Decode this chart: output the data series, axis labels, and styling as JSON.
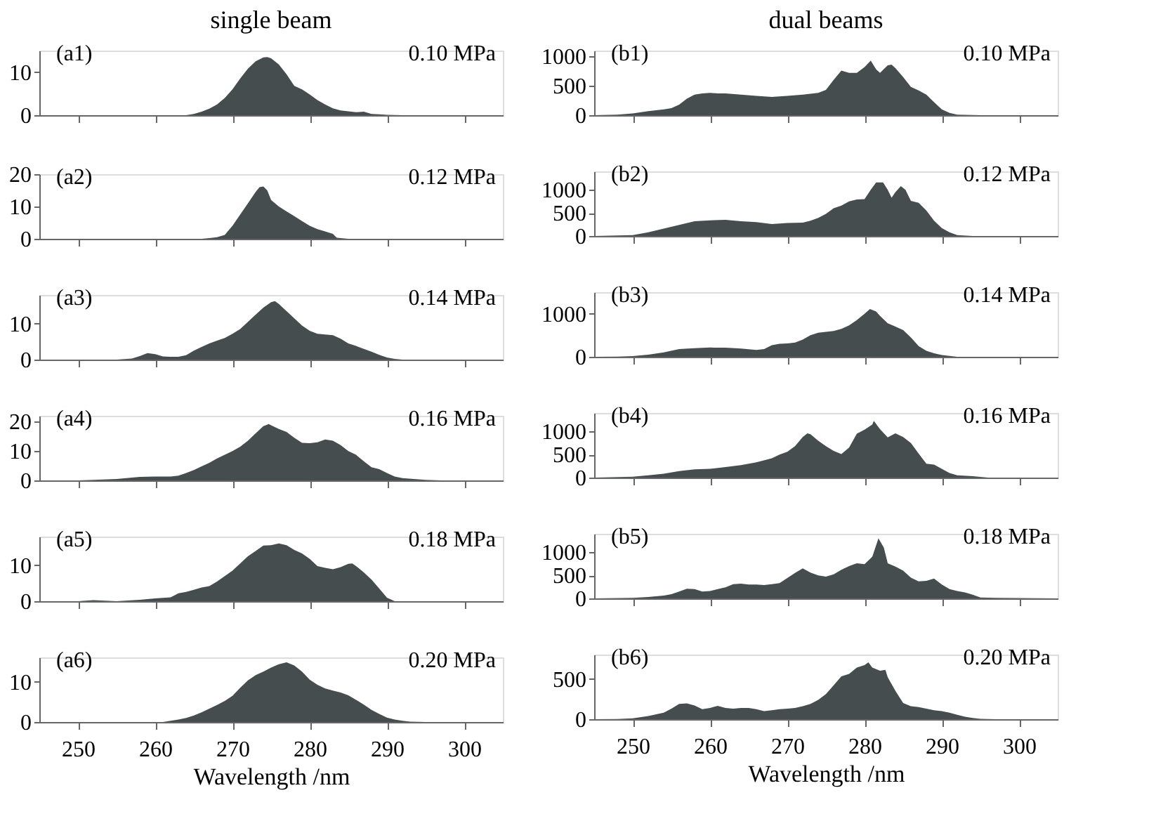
{
  "chart_data": [
    {
      "type": "area",
      "title": "single beam",
      "color": "#454d4f",
      "annotations": [
        "(a1)",
        "0.10 MPa"
      ],
      "xlim": [
        245,
        305
      ],
      "xticks": [
        250,
        260,
        270,
        280,
        290,
        300
      ],
      "ylim": [
        0,
        15
      ],
      "yticks": [
        0,
        10
      ],
      "tick_labels": "y",
      "grid": false,
      "x": [
        245,
        250,
        260,
        264,
        265,
        266,
        267,
        268,
        269,
        270,
        271,
        272,
        273,
        274,
        274.5,
        275,
        276,
        277,
        278,
        279,
        280,
        281,
        282,
        283,
        284,
        285,
        286,
        287,
        288,
        289,
        290,
        292,
        300,
        305
      ],
      "values": [
        0,
        0,
        0,
        0,
        0.3,
        0.8,
        1.5,
        2.5,
        4,
        6,
        8.5,
        10.8,
        12.5,
        13.4,
        13.5,
        13.2,
        11.8,
        9.5,
        6.8,
        6,
        4.8,
        3.5,
        2.5,
        1.6,
        1.1,
        0.9,
        0.7,
        0.8,
        0.3,
        0.2,
        0.1,
        0,
        0,
        0
      ]
    },
    {
      "type": "area",
      "color": "#454d4f",
      "annotations": [
        "(a2)",
        "0.12 MPa"
      ],
      "xlim": [
        245,
        305
      ],
      "xticks": [
        250,
        260,
        270,
        280,
        290,
        300
      ],
      "ylim": [
        0,
        20
      ],
      "yticks": [
        0,
        10,
        20
      ],
      "tick_labels": "y",
      "grid": false,
      "x": [
        245,
        260,
        266,
        267,
        268,
        269,
        270,
        271,
        272,
        273,
        273.5,
        274,
        274.5,
        275,
        276,
        277,
        278,
        279,
        280,
        281,
        282,
        283,
        283.5,
        285,
        305
      ],
      "values": [
        0,
        0,
        0,
        0.2,
        0.5,
        1.2,
        4,
        7.5,
        11,
        14.5,
        16,
        16.2,
        15,
        12,
        10,
        8.5,
        7,
        5.5,
        4,
        3,
        2.3,
        1.5,
        0.3,
        0,
        0
      ]
    },
    {
      "type": "area",
      "color": "#454d4f",
      "annotations": [
        "(a3)",
        "0.14 MPa"
      ],
      "xlim": [
        245,
        305
      ],
      "xticks": [
        250,
        260,
        270,
        280,
        290,
        300
      ],
      "ylim": [
        0,
        18
      ],
      "yticks": [
        0,
        10
      ],
      "tick_labels": "y",
      "grid": false,
      "x": [
        245,
        255,
        257,
        258,
        259,
        260,
        261,
        262,
        263,
        264,
        265,
        266,
        267,
        268,
        269,
        270,
        271,
        272,
        273,
        274,
        275,
        275.5,
        276,
        277,
        278,
        279,
        280,
        281,
        282,
        283,
        284,
        285,
        286,
        287,
        288,
        289,
        290,
        291,
        292,
        305
      ],
      "values": [
        0,
        0,
        0.3,
        1,
        1.8,
        1.5,
        0.9,
        0.8,
        0.8,
        1.2,
        2.5,
        3.5,
        4.5,
        5.3,
        6,
        7.2,
        8.5,
        10.5,
        12.5,
        14.5,
        16,
        16.3,
        15.5,
        13.5,
        11.5,
        9.5,
        8,
        7.2,
        7,
        6.8,
        5.8,
        4.5,
        3.8,
        3,
        2.2,
        1.3,
        0.6,
        0.2,
        0,
        0
      ]
    },
    {
      "type": "area",
      "color": "#454d4f",
      "annotations": [
        "(a4)",
        "0.16 MPa"
      ],
      "xlim": [
        245,
        305
      ],
      "xticks": [
        250,
        260,
        270,
        280,
        290,
        300
      ],
      "ylim": [
        0,
        22
      ],
      "yticks": [
        0,
        10,
        20
      ],
      "tick_labels": "y",
      "grid": false,
      "x": [
        245,
        250,
        252,
        255,
        258,
        260,
        262,
        263,
        264,
        265,
        266,
        267,
        268,
        269,
        270,
        271,
        272,
        273,
        274,
        274.7,
        275,
        276,
        277,
        278,
        279,
        280,
        281,
        282,
        283,
        284,
        285,
        286,
        287,
        288,
        289,
        290,
        291,
        292,
        295,
        297,
        305
      ],
      "values": [
        0,
        0,
        0.2,
        0.5,
        1.2,
        1.3,
        1.3,
        1.6,
        2.5,
        3.5,
        4.8,
        6,
        7.5,
        8.7,
        10,
        11.5,
        13.5,
        16,
        18.5,
        19.2,
        18.8,
        17.5,
        16.5,
        14.5,
        12.8,
        12.7,
        13,
        13.9,
        13.5,
        12,
        10,
        8.7,
        6.5,
        4.5,
        3.8,
        2.5,
        1.3,
        0.8,
        0.2,
        0,
        0
      ]
    },
    {
      "type": "area",
      "color": "#454d4f",
      "annotations": [
        "(a5)",
        "0.18 MPa"
      ],
      "xlim": [
        245,
        305
      ],
      "xticks": [
        250,
        260,
        270,
        280,
        290,
        300
      ],
      "ylim": [
        0,
        18
      ],
      "yticks": [
        0,
        10
      ],
      "tick_labels": "y",
      "grid": false,
      "x": [
        245,
        250,
        252,
        253,
        255,
        258,
        260,
        262,
        263,
        264,
        265,
        266,
        267,
        268,
        269,
        270,
        271,
        272,
        273,
        274,
        275,
        276,
        277,
        278,
        279,
        280,
        281,
        282,
        283,
        284,
        285,
        285.5,
        286,
        287,
        288,
        289,
        290,
        291,
        305
      ],
      "values": [
        0,
        0,
        0.3,
        0.2,
        0,
        0.4,
        0.8,
        1.1,
        2.2,
        2.6,
        3.2,
        3.8,
        4.2,
        5.5,
        7,
        8.5,
        10.5,
        12.5,
        14,
        15.5,
        15.6,
        16.1,
        15.6,
        14.3,
        13.3,
        11.8,
        9.8,
        9.3,
        8.9,
        9.5,
        10.4,
        10.5,
        9.8,
        8,
        6,
        3.5,
        1,
        0,
        0
      ]
    },
    {
      "type": "area",
      "color": "#454d4f",
      "xlabel": "Wavelength /nm",
      "annotations": [
        "(a6)",
        "0.20 MPa"
      ],
      "xlim": [
        245,
        305
      ],
      "xticks": [
        250,
        260,
        270,
        280,
        290,
        300
      ],
      "ylim": [
        0,
        16
      ],
      "yticks": [
        0,
        10
      ],
      "grid": false,
      "x": [
        245,
        260,
        261,
        262,
        263,
        264,
        265,
        266,
        267,
        268,
        269,
        270,
        271,
        272,
        273,
        274,
        275,
        276,
        277,
        278,
        279,
        280,
        281,
        282,
        283,
        284,
        285,
        286,
        287,
        288,
        289,
        290,
        291,
        292,
        293,
        295,
        305
      ],
      "values": [
        0,
        0,
        0,
        0.3,
        0.6,
        1,
        1.6,
        2.4,
        3.3,
        4.2,
        5.2,
        6.5,
        8.5,
        10.3,
        11.6,
        12.5,
        13.5,
        14.3,
        14.8,
        14,
        12.5,
        10.5,
        9.2,
        8.3,
        7.8,
        7.3,
        6.6,
        5.5,
        4.3,
        3,
        2,
        1.1,
        0.6,
        0.3,
        0.1,
        0,
        0
      ]
    },
    {
      "type": "area",
      "title": "dual beams",
      "color": "#454d4f",
      "annotations": [
        "(b1)",
        "0.10 MPa"
      ],
      "xlim": [
        245,
        305
      ],
      "xticks": [
        250,
        260,
        270,
        280,
        290,
        300
      ],
      "ylim": [
        0,
        1100
      ],
      "yticks": [
        0,
        500,
        1000
      ],
      "tick_labels": "y",
      "grid": false,
      "x": [
        245,
        248,
        250,
        252,
        254,
        255,
        256,
        257,
        258,
        259,
        260,
        261,
        262,
        264,
        266,
        268,
        270,
        272,
        274,
        275,
        276,
        277,
        278,
        279,
        280,
        280.8,
        281.5,
        282,
        283,
        283.5,
        284,
        285,
        286,
        287,
        288,
        289,
        290,
        291,
        292,
        295,
        305
      ],
      "values": [
        0,
        10,
        30,
        70,
        100,
        120,
        180,
        280,
        350,
        370,
        380,
        370,
        370,
        350,
        330,
        310,
        330,
        350,
        380,
        430,
        600,
        760,
        720,
        720,
        820,
        930,
        780,
        720,
        850,
        860,
        800,
        650,
        480,
        420,
        350,
        220,
        100,
        40,
        10,
        0,
        0
      ]
    },
    {
      "type": "area",
      "color": "#454d4f",
      "annotations": [
        "(b2)",
        "0.12 MPa"
      ],
      "xlim": [
        245,
        305
      ],
      "xticks": [
        250,
        260,
        270,
        280,
        290,
        300
      ],
      "ylim": [
        0,
        1400
      ],
      "yticks": [
        0,
        500,
        1000
      ],
      "tick_labels": "y",
      "grid": false,
      "x": [
        245,
        248,
        250,
        252,
        254,
        256,
        258,
        260,
        262,
        264,
        266,
        268,
        270,
        272,
        273,
        274,
        275,
        276,
        277,
        278,
        279,
        280,
        280.8,
        281.5,
        282.4,
        283,
        283.5,
        284,
        284.7,
        285.3,
        286,
        287,
        288,
        289,
        290,
        291,
        292,
        294,
        305
      ],
      "values": [
        0,
        10,
        20,
        80,
        160,
        240,
        320,
        340,
        350,
        320,
        300,
        260,
        280,
        290,
        330,
        390,
        480,
        600,
        660,
        750,
        790,
        800,
        1000,
        1160,
        1160,
        1000,
        830,
        950,
        1080,
        1000,
        760,
        720,
        550,
        330,
        170,
        80,
        20,
        0,
        0
      ]
    },
    {
      "type": "area",
      "color": "#454d4f",
      "annotations": [
        "(b3)",
        "0.14 MPa"
      ],
      "xlim": [
        245,
        305
      ],
      "xticks": [
        250,
        260,
        270,
        280,
        290,
        300
      ],
      "ylim": [
        0,
        1500
      ],
      "yticks": [
        0,
        1000
      ],
      "tick_labels": "y",
      "grid": false,
      "x": [
        245,
        248,
        250,
        252,
        254,
        256,
        258,
        260,
        262,
        264,
        266,
        267,
        268,
        269,
        270,
        271,
        272,
        273,
        274,
        275,
        276,
        277,
        278,
        279,
        280,
        280.7,
        281.5,
        282,
        283,
        284,
        285,
        286,
        287,
        288,
        289,
        290,
        292,
        305
      ],
      "values": [
        0,
        5,
        15,
        50,
        100,
        180,
        200,
        215,
        210,
        190,
        160,
        180,
        270,
        300,
        310,
        330,
        400,
        500,
        560,
        580,
        600,
        650,
        730,
        850,
        1000,
        1110,
        1050,
        950,
        780,
        700,
        620,
        450,
        250,
        140,
        80,
        40,
        0,
        0
      ]
    },
    {
      "type": "area",
      "color": "#454d4f",
      "annotations": [
        "(b4)",
        "0.16 MPa"
      ],
      "xlim": [
        245,
        305
      ],
      "xticks": [
        250,
        260,
        270,
        280,
        290,
        300
      ],
      "ylim": [
        0,
        1400
      ],
      "yticks": [
        0,
        500,
        1000
      ],
      "tick_labels": "y",
      "grid": false,
      "x": [
        245,
        248,
        250,
        252,
        254,
        256,
        258,
        260,
        262,
        264,
        266,
        268,
        269,
        270,
        271,
        272,
        272.6,
        273,
        274,
        275,
        276,
        277,
        278,
        279,
        280,
        281,
        281.2,
        282,
        283,
        284,
        285,
        286,
        287,
        288,
        289,
        290,
        291,
        292,
        294,
        296,
        305
      ],
      "values": [
        0,
        10,
        20,
        50,
        85,
        140,
        180,
        190,
        230,
        270,
        330,
        420,
        500,
        560,
        680,
        880,
        958,
        940,
        800,
        680,
        580,
        510,
        650,
        950,
        1040,
        1150,
        1230,
        1050,
        870,
        960,
        880,
        750,
        520,
        300,
        280,
        190,
        100,
        50,
        30,
        0,
        0
      ]
    },
    {
      "type": "area",
      "color": "#454d4f",
      "annotations": [
        "(b5)",
        "0.18 MPa"
      ],
      "xlim": [
        245,
        305
      ],
      "xticks": [
        250,
        260,
        270,
        280,
        290,
        300
      ],
      "ylim": [
        0,
        1400
      ],
      "yticks": [
        0,
        500,
        1000
      ],
      "tick_labels": "y",
      "grid": false,
      "x": [
        245,
        250,
        252,
        254,
        255,
        256,
        257,
        258,
        259,
        260,
        261,
        262,
        263,
        264,
        265,
        266,
        267,
        268,
        269,
        270,
        271,
        272,
        273,
        274,
        275,
        276,
        277,
        278,
        279,
        280,
        281,
        281.8,
        282.5,
        283,
        284,
        285,
        286,
        287,
        288,
        289,
        290,
        291,
        292,
        293,
        294,
        295,
        297,
        305
      ],
      "values": [
        0,
        10,
        30,
        60,
        90,
        150,
        210,
        200,
        150,
        160,
        200,
        240,
        310,
        320,
        300,
        300,
        290,
        310,
        330,
        440,
        550,
        650,
        560,
        500,
        470,
        520,
        620,
        700,
        760,
        740,
        900,
        1300,
        1100,
        760,
        690,
        600,
        450,
        370,
        380,
        430,
        300,
        200,
        160,
        130,
        80,
        20,
        10,
        0
      ]
    },
    {
      "type": "area",
      "color": "#454d4f",
      "xlabel": "Wavelength /nm",
      "annotations": [
        "(b6)",
        "0.20 MPa"
      ],
      "xlim": [
        245,
        305
      ],
      "xticks": [
        250,
        260,
        270,
        280,
        290,
        300
      ],
      "ylim": [
        0,
        800
      ],
      "yticks": [
        0,
        500
      ],
      "grid": false,
      "x": [
        245,
        248,
        250,
        252,
        254,
        255,
        256,
        257,
        258,
        259,
        260,
        261,
        262,
        263,
        264,
        265,
        266,
        267,
        268,
        269,
        270,
        271,
        272,
        273,
        274,
        275,
        276,
        277,
        278,
        279,
        280,
        280.5,
        281,
        282,
        282.7,
        283,
        284,
        285,
        286,
        287,
        288,
        289,
        290,
        291,
        292,
        293,
        294,
        295,
        297,
        305
      ],
      "values": [
        0,
        3,
        10,
        40,
        80,
        130,
        190,
        195,
        170,
        125,
        140,
        165,
        140,
        130,
        140,
        140,
        125,
        100,
        110,
        125,
        130,
        140,
        160,
        190,
        240,
        310,
        420,
        530,
        560,
        640,
        670,
        705,
        640,
        600,
        610,
        520,
        350,
        200,
        160,
        150,
        130,
        110,
        100,
        80,
        55,
        30,
        15,
        5,
        0,
        0
      ]
    }
  ]
}
